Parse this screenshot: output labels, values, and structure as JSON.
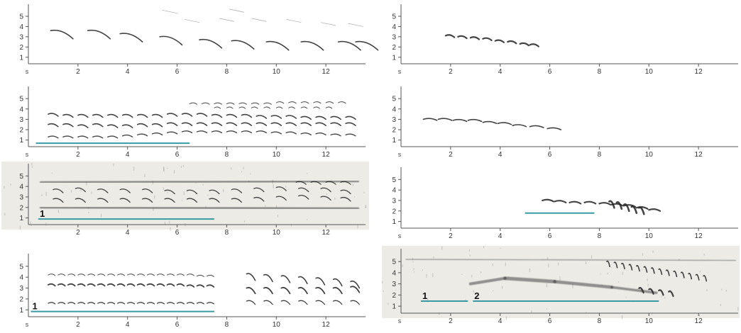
{
  "figure": {
    "colors": {
      "ink": "#222222",
      "axis": "#555555",
      "marker": "#3a9aa3",
      "scan_background": "#ecebe6"
    }
  },
  "chart_data": [
    {
      "type": "scatter",
      "xlabel": "s",
      "x_ticks": [
        "2",
        "4",
        "6",
        "8",
        "10",
        "12"
      ],
      "y_ticks": [
        "1",
        "2",
        "3",
        "4",
        "5"
      ],
      "xlim": [
        0,
        13.6
      ],
      "ylim": [
        0.5,
        5.9
      ],
      "series": [
        {
          "x": [
            0.9,
            2.4,
            3.7,
            5.3,
            6.9,
            8.2,
            9.6,
            11.0,
            12.5,
            13.2
          ],
          "y": [
            3.6,
            3.6,
            3.3,
            3.0,
            2.7,
            2.6,
            2.5,
            2.5,
            2.5,
            2.5
          ],
          "len": 0.9,
          "drop": 0.8,
          "width": 1.6
        }
      ],
      "faint_strokes": {
        "x": [
          6.3,
          7.7,
          9.0,
          10.4,
          11.8,
          12.9,
          5.4,
          8.1
        ],
        "y": [
          4.7,
          4.8,
          4.8,
          4.7,
          4.4,
          4.3,
          5.6,
          5.7
        ]
      },
      "markers": []
    },
    {
      "type": "scatter",
      "xlabel": "s",
      "x_ticks": [
        "2",
        "4",
        "6",
        "8",
        "10",
        "12"
      ],
      "y_ticks": [
        "1",
        "2",
        "3",
        "4",
        "5"
      ],
      "xlim": [
        0,
        13.6
      ],
      "ylim": [
        0.5,
        5.9
      ],
      "series": [
        {
          "x": [
            1.8,
            2.3,
            2.8,
            3.3,
            3.8,
            4.3,
            4.8,
            5.2
          ],
          "y": [
            3.1,
            3.0,
            2.9,
            2.8,
            2.6,
            2.5,
            2.3,
            2.2
          ],
          "len": 0.35,
          "drop": 0.15,
          "width": 2.2
        }
      ],
      "markers": []
    },
    {
      "type": "scatter",
      "xlabel": "s",
      "x_ticks": [
        "2",
        "4",
        "6",
        "8",
        "10",
        "12"
      ],
      "y_ticks": [
        "1",
        "2",
        "3",
        "4",
        "5"
      ],
      "xlim": [
        0,
        13.6
      ],
      "ylim": [
        0.5,
        5.9
      ],
      "series": [
        {
          "x": [
            0.8,
            1.4,
            2.0,
            2.6,
            3.2,
            3.8,
            4.4,
            5.0,
            5.6,
            6.2,
            6.8,
            7.4,
            8.0,
            8.6,
            9.2,
            9.8,
            10.4,
            11.0,
            11.6,
            12.2,
            12.8
          ],
          "y": [
            3.5,
            3.4,
            3.4,
            3.4,
            3.4,
            3.4,
            3.4,
            3.4,
            3.5,
            3.5,
            3.5,
            3.4,
            3.4,
            3.4,
            3.3,
            3.3,
            3.3,
            3.2,
            3.2,
            3.2,
            3.2
          ],
          "len": 0.4,
          "drop": 0.2,
          "width": 1.6
        },
        {
          "x": [
            0.8,
            1.4,
            2.0,
            2.6,
            3.2,
            3.8,
            4.4,
            5.0,
            5.6,
            6.2,
            6.8,
            7.4,
            8.0,
            8.6,
            9.2,
            9.8,
            10.4,
            11.0,
            11.6,
            12.2,
            12.8
          ],
          "y": [
            2.5,
            2.5,
            2.4,
            2.5,
            2.4,
            2.4,
            2.5,
            2.5,
            2.6,
            2.6,
            2.6,
            2.6,
            2.6,
            2.6,
            2.6,
            2.6,
            2.6,
            2.6,
            2.6,
            2.6,
            2.6
          ],
          "len": 0.4,
          "drop": 0.2,
          "width": 1.6
        },
        {
          "x": [
            0.8,
            1.4,
            2.0,
            2.6,
            3.2,
            3.8,
            4.4,
            5.0,
            5.6,
            6.2,
            6.8,
            7.4,
            8.0,
            8.6,
            9.2,
            9.8,
            10.4,
            11.0,
            11.6,
            12.2,
            12.8
          ],
          "y": [
            1.3,
            1.3,
            1.3,
            1.3,
            1.3,
            1.4,
            1.5,
            1.6,
            1.7,
            1.8,
            1.8,
            1.8,
            1.8,
            1.8,
            1.8,
            1.7,
            1.7,
            1.6,
            1.6,
            1.5,
            1.5
          ],
          "len": 0.4,
          "drop": 0.1,
          "width": 1.4
        },
        {
          "x": [
            6.5,
            7.0,
            7.5,
            8.0,
            8.5,
            9.0,
            9.5,
            10.0,
            10.5,
            11.0,
            11.5,
            12.0,
            12.5
          ],
          "y": [
            4.5,
            4.5,
            4.5,
            4.5,
            4.5,
            4.5,
            4.5,
            4.6,
            4.6,
            4.6,
            4.6,
            4.6,
            4.6
          ],
          "len": 0.3,
          "drop": 0.05,
          "width": 1.0
        },
        {
          "x": [
            7.5,
            8.0,
            8.5,
            9.0,
            9.5,
            10.0,
            10.5,
            11.0,
            11.5,
            12.0
          ],
          "y": [
            4.1,
            4.1,
            4.1,
            4.1,
            4.1,
            4.1,
            4.1,
            4.1,
            4.1,
            4.1
          ],
          "len": 0.25,
          "drop": 0.05,
          "width": 0.9
        }
      ],
      "markers": [
        {
          "x0": 0.3,
          "x1": 6.5,
          "y": 0.7,
          "label": ""
        }
      ]
    },
    {
      "type": "scatter",
      "xlabel": "s",
      "x_ticks": [
        "2",
        "4",
        "6",
        "8",
        "10",
        "12"
      ],
      "y_ticks": [
        "1",
        "2",
        "3",
        "4",
        "5"
      ],
      "xlim": [
        0,
        13.6
      ],
      "ylim": [
        0.5,
        5.9
      ],
      "series": [
        {
          "x": [
            0.9,
            1.5,
            2.1,
            2.7,
            3.3,
            3.9,
            4.5,
            5.2,
            5.9
          ],
          "y": [
            3.0,
            3.0,
            2.9,
            2.9,
            2.7,
            2.6,
            2.4,
            2.3,
            2.1
          ],
          "len": 0.55,
          "drop": 0.1,
          "width": 1.6
        }
      ],
      "markers": []
    },
    {
      "type": "scatter",
      "xlabel": "",
      "scanned": true,
      "x_ticks": [
        "2",
        "4",
        "6",
        "8",
        "10",
        "12"
      ],
      "y_ticks": [
        "1",
        "2",
        "3",
        "4",
        "5"
      ],
      "xlim": [
        0,
        13.6
      ],
      "ylim": [
        0.5,
        5.9
      ],
      "series": [
        {
          "x": [
            1.0,
            1.9,
            2.8,
            3.7,
            4.6,
            5.5,
            6.4,
            7.3,
            8.2,
            9.1,
            10.0,
            10.9,
            11.8,
            12.6
          ],
          "y": [
            3.7,
            3.8,
            3.7,
            3.7,
            3.7,
            3.6,
            3.6,
            3.6,
            3.7,
            3.8,
            3.9,
            3.8,
            3.8,
            3.6
          ],
          "len": 0.4,
          "drop": 0.3,
          "width": 1.3
        },
        {
          "x": [
            1.0,
            1.9,
            2.8,
            3.7,
            4.6,
            5.5,
            6.4,
            7.3,
            8.2,
            9.1,
            10.0,
            10.9,
            11.8,
            12.6
          ],
          "y": [
            2.8,
            2.8,
            2.8,
            2.8,
            2.8,
            2.8,
            2.8,
            2.8,
            2.8,
            2.9,
            3.0,
            3.1,
            3.0,
            2.9
          ],
          "len": 0.4,
          "drop": 0.3,
          "width": 1.3
        },
        {
          "x": [
            10.8,
            11.4,
            12.0,
            12.6
          ],
          "y": [
            4.4,
            4.4,
            4.4,
            4.4
          ],
          "len": 0.4,
          "drop": 0.2,
          "width": 1.2
        }
      ],
      "bands": [
        {
          "x0": 0.5,
          "x1": 13.3,
          "y0": 2.0,
          "y1": 1.9,
          "width": 3.2
        },
        {
          "x0": 0.5,
          "x1": 13.3,
          "y0": 4.4,
          "y1": 4.5,
          "width": 3.0
        }
      ],
      "markers": [
        {
          "x0": 0.4,
          "x1": 7.5,
          "y": 0.9,
          "label": "1"
        }
      ]
    },
    {
      "type": "scatter",
      "xlabel": "s",
      "scanned": true,
      "x_ticks": [
        "2",
        "4",
        "6",
        "8",
        "10",
        "12"
      ],
      "y_ticks": [
        "1",
        "2",
        "3",
        "4",
        "5"
      ],
      "xlim": [
        0,
        13.6
      ],
      "ylim": [
        0.5,
        5.9
      ],
      "series": [
        {
          "x": [
            5.7,
            6.2,
            6.8,
            7.4,
            8.0,
            8.5,
            9.0,
            9.5,
            10.0
          ],
          "y": [
            3.0,
            2.9,
            2.8,
            2.8,
            2.7,
            2.6,
            2.5,
            2.3,
            2.1
          ],
          "len": 0.45,
          "drop": 0.1,
          "width": 2.2
        },
        {
          "x": [
            8.4,
            8.7,
            9.0,
            9.3,
            9.6
          ],
          "y": [
            2.9,
            2.8,
            2.6,
            2.4,
            2.3
          ],
          "len": 0.2,
          "drop": 0.6,
          "width": 2.6
        }
      ],
      "markers": [
        {
          "x0": 5.0,
          "x1": 7.8,
          "y": 1.8,
          "label": ""
        }
      ]
    },
    {
      "type": "scatter",
      "xlabel": "s",
      "x_ticks": [
        "2",
        "4",
        "6",
        "8",
        "10",
        "12"
      ],
      "y_ticks": [
        "1",
        "2",
        "3",
        "4",
        "5"
      ],
      "xlim": [
        0,
        13.6
      ],
      "ylim": [
        0.5,
        5.9
      ],
      "series": [
        {
          "x": [
            0.8,
            1.2,
            1.6,
            2.0,
            2.4,
            2.8,
            3.2,
            3.6,
            4.0,
            4.4,
            4.8,
            5.2,
            5.6,
            6.0,
            6.4,
            6.8,
            7.2
          ],
          "y": [
            3.3,
            3.3,
            3.3,
            3.3,
            3.3,
            3.3,
            3.3,
            3.3,
            3.3,
            3.3,
            3.3,
            3.3,
            3.3,
            3.3,
            3.2,
            3.2,
            3.2
          ],
          "len": 0.28,
          "drop": 0.1,
          "width": 1.8
        },
        {
          "x": [
            0.8,
            1.2,
            1.6,
            2.0,
            2.4,
            2.8,
            3.2,
            3.6,
            4.0,
            4.4,
            4.8,
            5.2,
            5.6,
            6.0,
            6.4,
            6.8,
            7.2
          ],
          "y": [
            4.2,
            4.2,
            4.2,
            4.2,
            4.2,
            4.2,
            4.2,
            4.2,
            4.2,
            4.2,
            4.2,
            4.2,
            4.2,
            4.2,
            4.2,
            4.1,
            4.1
          ],
          "len": 0.28,
          "drop": 0.05,
          "width": 1.0
        },
        {
          "x": [
            0.8,
            1.2,
            1.6,
            2.0,
            2.4,
            2.8,
            3.2,
            3.6,
            4.0,
            4.4,
            4.8,
            5.2,
            5.6,
            6.0,
            6.4,
            6.8,
            7.2
          ],
          "y": [
            1.6,
            1.6,
            1.6,
            1.6,
            1.6,
            1.6,
            1.6,
            1.6,
            1.6,
            1.6,
            1.6,
            1.6,
            1.6,
            1.6,
            1.6,
            1.6,
            1.6
          ],
          "len": 0.28,
          "drop": 0.05,
          "width": 1.3
        },
        {
          "x": [
            8.8,
            9.5,
            10.2,
            10.9,
            11.6,
            12.3,
            13.0
          ],
          "y": [
            4.3,
            4.2,
            4.1,
            4.0,
            3.9,
            3.8,
            3.6
          ],
          "len": 0.35,
          "drop": 0.6,
          "width": 1.6
        },
        {
          "x": [
            8.8,
            9.5,
            10.2,
            10.9,
            11.6,
            12.3,
            13.0
          ],
          "y": [
            3.0,
            3.0,
            3.0,
            3.0,
            3.0,
            3.0,
            3.1
          ],
          "len": 0.35,
          "drop": 0.5,
          "width": 1.8
        },
        {
          "x": [
            8.8,
            9.5,
            10.2,
            10.9,
            11.6,
            12.3,
            13.0
          ],
          "y": [
            1.8,
            1.8,
            1.8,
            1.8,
            1.8,
            1.8,
            1.8
          ],
          "len": 0.35,
          "drop": 0.3,
          "width": 1.3
        }
      ],
      "markers": [
        {
          "x0": 0.1,
          "x1": 7.5,
          "y": 0.85,
          "label": "1"
        }
      ]
    },
    {
      "type": "scatter",
      "xlabel": "s",
      "scanned": true,
      "x_ticks": [
        "2",
        "4",
        "6",
        "8",
        "10",
        "12"
      ],
      "y_ticks": [
        "1",
        "2",
        "3",
        "4",
        "5"
      ],
      "xlim": [
        0,
        13.6
      ],
      "ylim": [
        0.5,
        5.9
      ],
      "series": [
        {
          "x": [
            8.3,
            8.6,
            8.9,
            9.2,
            9.5,
            9.8,
            10.1,
            10.4,
            10.7,
            11.0,
            11.3,
            11.6,
            11.9,
            12.2
          ],
          "y": [
            5.0,
            4.9,
            4.8,
            4.7,
            4.6,
            4.5,
            4.4,
            4.3,
            4.2,
            4.1,
            4.0,
            3.9,
            3.8,
            3.7
          ],
          "len": 0.12,
          "drop": 0.45,
          "width": 1.6
        },
        {
          "x": [
            9.6,
            10.0,
            10.4,
            10.8
          ],
          "y": [
            2.6,
            2.5,
            2.4,
            2.3
          ],
          "len": 0.18,
          "drop": 0.4,
          "width": 2.2
        }
      ],
      "bands": [
        {
          "x0": 0.2,
          "x1": 13.5,
          "y0": 4.3,
          "y1": 4.3,
          "width": 3.0
        },
        {
          "x0": 0.2,
          "x1": 13.5,
          "y0": 5.2,
          "y1": 5.1,
          "width": 1.2
        },
        {
          "x0": 2.8,
          "x1": 4.2,
          "y0": 3.0,
          "y1": 3.5,
          "width": 4.0
        },
        {
          "x0": 4.2,
          "x1": 6.2,
          "y0": 3.5,
          "y1": 3.2,
          "width": 5.0
        },
        {
          "x0": 6.2,
          "x1": 8.5,
          "y0": 3.2,
          "y1": 2.7,
          "width": 4.5
        },
        {
          "x0": 8.5,
          "x1": 10.3,
          "y0": 2.7,
          "y1": 2.2,
          "width": 3.5
        }
      ],
      "markers": [
        {
          "x0": 0.8,
          "x1": 2.7,
          "y": 1.45,
          "label": "1"
        },
        {
          "x0": 2.9,
          "x1": 10.4,
          "y": 1.45,
          "label": "2"
        }
      ]
    }
  ]
}
